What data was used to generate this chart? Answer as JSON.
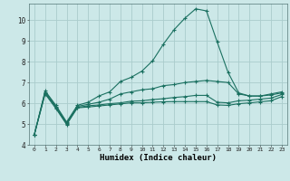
{
  "xlabel": "Humidex (Indice chaleur)",
  "bg_color": "#cce8e8",
  "grid_color": "#aacccc",
  "line_color": "#1a7060",
  "xlim": [
    -0.5,
    23.5
  ],
  "ylim": [
    4.0,
    10.8
  ],
  "yticks": [
    4,
    5,
    6,
    7,
    8,
    9,
    10
  ],
  "xticks": [
    0,
    1,
    2,
    3,
    4,
    5,
    6,
    7,
    8,
    9,
    10,
    11,
    12,
    13,
    14,
    15,
    16,
    17,
    18,
    19,
    20,
    21,
    22,
    23
  ],
  "series": {
    "max": [
      4.5,
      6.6,
      5.9,
      5.1,
      5.9,
      6.05,
      6.35,
      6.55,
      7.05,
      7.25,
      7.55,
      8.05,
      8.85,
      9.55,
      10.1,
      10.55,
      10.45,
      8.95,
      7.5,
      6.5,
      6.35,
      6.35,
      6.45,
      6.55
    ],
    "avg": [
      4.5,
      6.55,
      5.85,
      5.05,
      5.85,
      5.95,
      6.05,
      6.2,
      6.45,
      6.55,
      6.65,
      6.7,
      6.85,
      6.9,
      7.0,
      7.05,
      7.1,
      7.05,
      7.0,
      6.45,
      6.35,
      6.35,
      6.4,
      6.5
    ],
    "min": [
      4.5,
      6.5,
      5.8,
      5.0,
      5.8,
      5.88,
      5.92,
      5.98,
      6.02,
      6.1,
      6.12,
      6.18,
      6.22,
      6.28,
      6.32,
      6.38,
      6.38,
      6.05,
      6.02,
      6.12,
      6.15,
      6.2,
      6.25,
      6.42
    ],
    "extra": [
      4.5,
      6.45,
      5.75,
      4.98,
      5.78,
      5.82,
      5.87,
      5.92,
      5.97,
      6.02,
      6.02,
      6.05,
      6.07,
      6.08,
      6.08,
      6.08,
      6.08,
      5.92,
      5.9,
      5.98,
      6.02,
      6.07,
      6.12,
      6.32
    ]
  }
}
